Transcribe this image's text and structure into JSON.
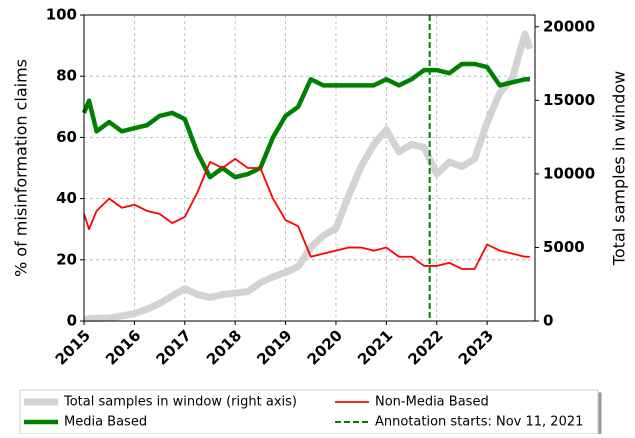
{
  "chart_data": {
    "type": "line",
    "ylabel": "% of misinformation claims",
    "y2label": "Total samples in window",
    "x": [
      2015.0,
      2015.1,
      2015.25,
      2015.5,
      2015.75,
      2016.0,
      2016.25,
      2016.5,
      2016.75,
      2017.0,
      2017.25,
      2017.5,
      2017.75,
      2018.0,
      2018.25,
      2018.5,
      2018.75,
      2019.0,
      2019.25,
      2019.5,
      2019.75,
      2020.0,
      2020.25,
      2020.5,
      2020.75,
      2021.0,
      2021.25,
      2021.5,
      2021.75,
      2022.0,
      2022.25,
      2022.5,
      2022.75,
      2023.0,
      2023.25,
      2023.5,
      2023.75,
      2023.85
    ],
    "series": [
      {
        "name": "Total samples in window (right axis)",
        "color": "#d3d3d3",
        "axis": "y2",
        "values": [
          100,
          150,
          180,
          200,
          350,
          500,
          800,
          1200,
          1700,
          2200,
          1800,
          1600,
          1800,
          1900,
          2000,
          2600,
          3000,
          3300,
          3700,
          5000,
          5800,
          6300,
          8500,
          10500,
          12000,
          13000,
          11500,
          12000,
          11800,
          10000,
          10800,
          10500,
          11000,
          13500,
          15500,
          16500,
          19500,
          18500
        ]
      },
      {
        "name": "Media Based",
        "color": "#008000",
        "values": [
          68,
          72,
          62,
          65,
          62,
          63,
          64,
          67,
          68,
          66,
          55,
          47,
          50,
          47,
          48,
          50,
          60,
          67,
          70,
          79,
          77,
          77,
          77,
          77,
          77,
          79,
          77,
          79,
          82,
          82,
          81,
          84,
          84,
          83,
          77,
          78,
          79,
          79
        ]
      },
      {
        "name": "Non-Media Based",
        "color": "#ff0000",
        "values": [
          35,
          30,
          36,
          40,
          37,
          38,
          36,
          35,
          32,
          34,
          42,
          52,
          50,
          53,
          50,
          50,
          40,
          33,
          31,
          21,
          22,
          23,
          24,
          24,
          23,
          24,
          21,
          21,
          18,
          18,
          19,
          17,
          17,
          25,
          23,
          22,
          21,
          21
        ]
      }
    ],
    "annotation": {
      "x": 2021.86,
      "label": "Annotation starts: Nov 11, 2021",
      "color": "#008000"
    },
    "xlim": [
      2015,
      2023.95
    ],
    "xticks": [
      2015,
      2016,
      2017,
      2018,
      2019,
      2020,
      2021,
      2022,
      2023
    ],
    "ylim": [
      0,
      100
    ],
    "yticks": [
      0,
      20,
      40,
      60,
      80,
      100
    ],
    "y2lim": [
      0,
      20800
    ],
    "y2ticks": [
      0,
      5000,
      10000,
      15000,
      20000
    ],
    "grid": true,
    "legend": "below"
  }
}
